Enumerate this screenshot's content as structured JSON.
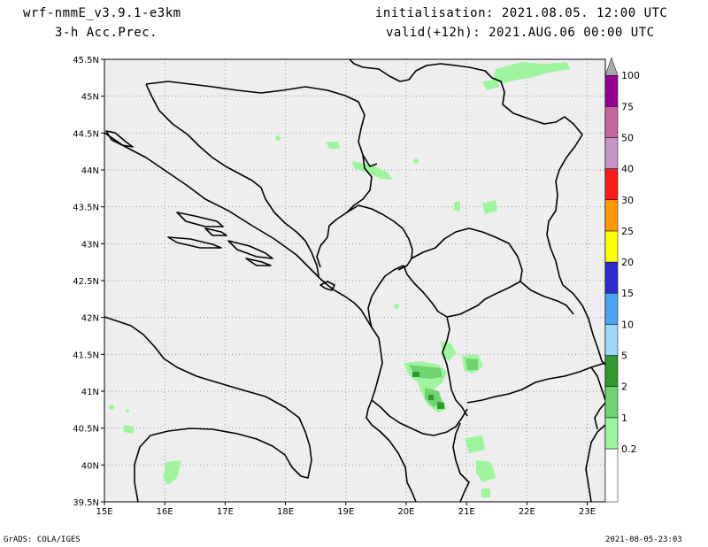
{
  "header": {
    "model": "wrf-nmmE_v3.9.1-e3km",
    "field": "3-h Acc.Prec.",
    "init": "initialisation: 2021.08.05.  12:00 UTC",
    "valid": "valid(+12h): 2021.AUG.06 00:00 UTC"
  },
  "axes": {
    "lat_labels": [
      "45.5N",
      "45N",
      "44.5N",
      "44N",
      "43.5N",
      "43N",
      "42.5N",
      "42N",
      "41.5N",
      "41N",
      "40.5N",
      "40N",
      "39.5N"
    ],
    "lon_labels": [
      "15E",
      "16E",
      "17E",
      "18E",
      "19E",
      "20E",
      "21E",
      "22E",
      "23E"
    ],
    "lat_range": [
      39.5,
      45.5
    ],
    "lon_range": [
      15,
      23.3
    ],
    "grid": "dotted"
  },
  "colorbar": {
    "levels": [
      "0.2",
      "1",
      "2",
      "5",
      "10",
      "15",
      "20",
      "25",
      "30",
      "40",
      "50",
      "75",
      "100"
    ],
    "colors": [
      "#ffffff",
      "#9ef59e",
      "#6fd36f",
      "#2e9a2e",
      "#9ad8fb",
      "#4aa4f4",
      "#2c2cd0",
      "#ffff00",
      "#ff9a00",
      "#ff1a1a",
      "#c894c8",
      "#c864a0",
      "#960096",
      "#aaaaaa"
    ]
  },
  "colors": {
    "land_sea": "#eeeeee",
    "light_precip": "#9ef59e",
    "mid_precip": "#6fd36f",
    "heavy_precip": "#2e9a2e"
  },
  "footer": {
    "left": "GrADS: COLA/IGES",
    "right": "2021-08-05-23:03"
  }
}
